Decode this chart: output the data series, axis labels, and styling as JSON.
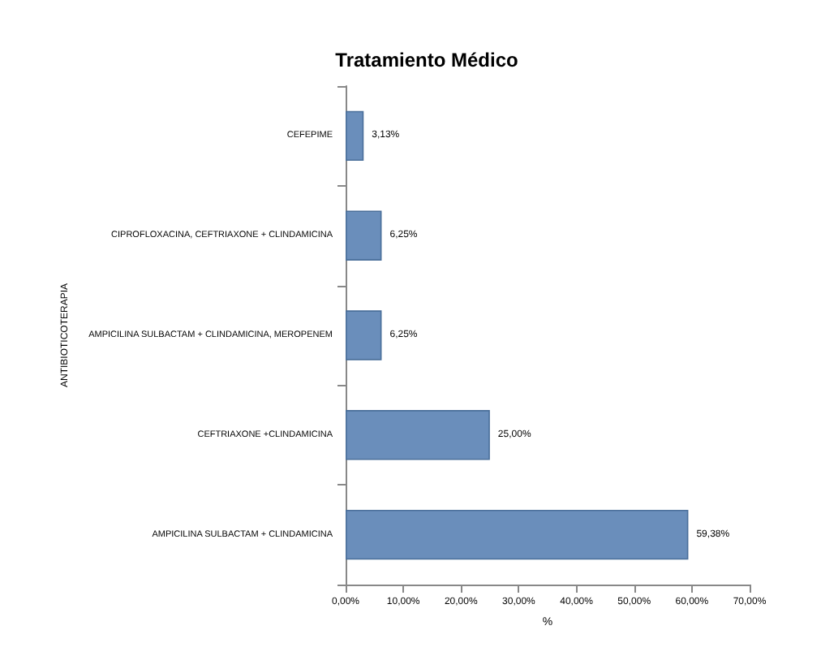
{
  "chart_data": {
    "type": "bar",
    "orientation": "horizontal",
    "title": "Tratamiento Médico",
    "xlabel": "%",
    "ylabel": "ANTIBIOTICOTERAPIA",
    "categories": [
      "CEFEPIME",
      "CIPROFLOXACINA, CEFTRIAXONE + CLINDAMICINA",
      "AMPICILINA SULBACTAM + CLINDAMICINA, MEROPENEM",
      "CEFTRIAXONE +CLINDAMICINA",
      "AMPICILINA SULBACTAM + CLINDAMICINA"
    ],
    "values": [
      3.13,
      6.25,
      6.25,
      25,
      59.38
    ],
    "value_labels": [
      "3,13%",
      "6,25%",
      "6,25%",
      "25,00%",
      "59,38%"
    ],
    "color": "#6a8ebb",
    "xlim": [
      0,
      70
    ],
    "xticks": [
      {
        "value": 0,
        "label": "0,00%"
      },
      {
        "value": 10,
        "label": "10,00%"
      },
      {
        "value": 20,
        "label": "20,00%"
      },
      {
        "value": 30,
        "label": "30,00%"
      },
      {
        "value": 40,
        "label": "40,00%"
      },
      {
        "value": 50,
        "label": "50,00%"
      },
      {
        "value": 60,
        "label": "60,00%"
      },
      {
        "value": 70,
        "label": "70,00%"
      }
    ],
    "grid": false
  }
}
